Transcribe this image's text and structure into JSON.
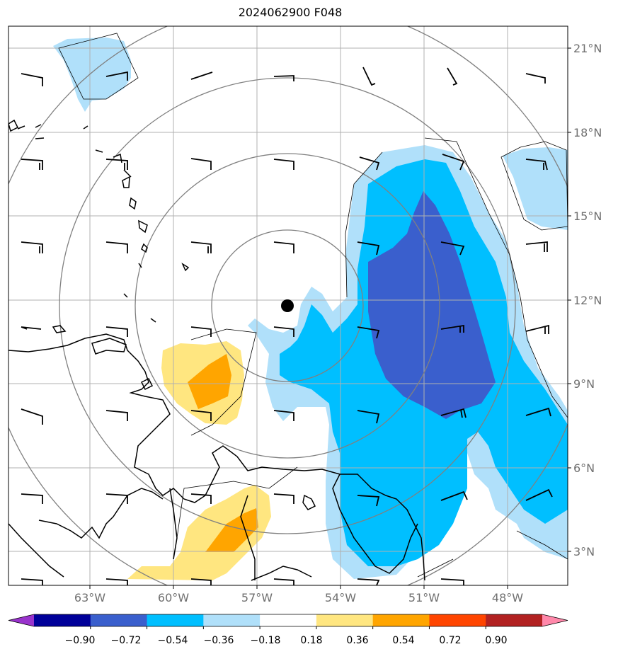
{
  "title": "2024062900 F048",
  "lat_labels": [
    "21°N",
    "18°N",
    "15°N",
    "12°N",
    "9°N",
    "6°N",
    "3°N"
  ],
  "lon_labels": [
    "63°W",
    "60°W",
    "57°W",
    "54°W",
    "51°W",
    "48°W"
  ],
  "colorbar": {
    "ticks": [
      "−0.90",
      "−0.72",
      "−0.54",
      "−0.36",
      "−0.18",
      "0.18",
      "0.36",
      "0.54",
      "0.72",
      "0.90"
    ],
    "colors": [
      "#9933cc",
      "#000099",
      "#3a5fcd",
      "#00bfff",
      "#b0e0fa",
      "#ffffff",
      "#ffe680",
      "#ffa500",
      "#ff4500",
      "#b22222",
      "#ff88aa"
    ]
  },
  "colors": {
    "light_blue": "#b0e0fa",
    "sky_blue": "#00bfff",
    "royal_blue": "#3a5fcd",
    "light_yellow": "#ffe680",
    "orange": "#ffa500",
    "range_rings": "#808080",
    "grid": "#b0b0b0"
  },
  "map": {
    "storm_center_marker": "black-dot",
    "overlays": [
      "coastlines",
      "range-rings",
      "wind-barbs",
      "lat-lon-grid"
    ]
  }
}
